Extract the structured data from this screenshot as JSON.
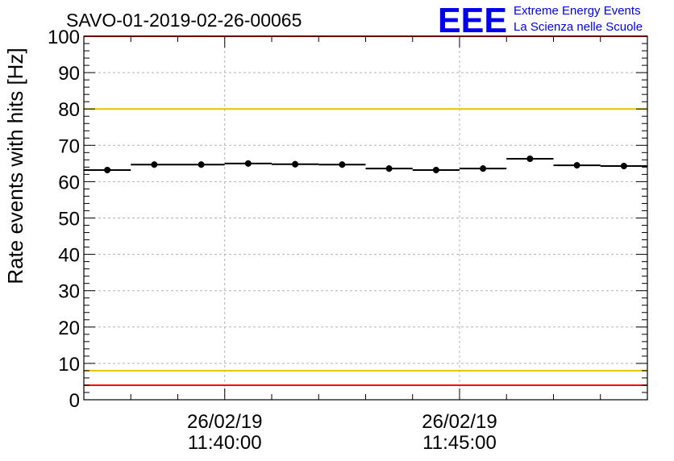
{
  "chart_data": {
    "type": "scatter",
    "title": "SAVO-01-2019-02-26-00065",
    "xlabel": "",
    "ylabel": "Rate events with hits [Hz]",
    "ylim": [
      0,
      100
    ],
    "y_ticks": [
      "0",
      "10",
      "20",
      "30",
      "40",
      "50",
      "60",
      "70",
      "80",
      "90",
      "100"
    ],
    "x_ticks": [
      {
        "date": "26/02/19",
        "time": "11:40:00",
        "minute": 5
      },
      {
        "date": "26/02/19",
        "time": "11:45:00",
        "minute": 10
      }
    ],
    "x_range_minutes": [
      2,
      14
    ],
    "bin_width_minutes": 1,
    "points": [
      {
        "x": 2.5,
        "y": 63.2
      },
      {
        "x": 3.5,
        "y": 64.7
      },
      {
        "x": 4.5,
        "y": 64.7
      },
      {
        "x": 5.5,
        "y": 65.0
      },
      {
        "x": 6.5,
        "y": 64.8
      },
      {
        "x": 7.5,
        "y": 64.7
      },
      {
        "x": 8.5,
        "y": 63.6
      },
      {
        "x": 9.5,
        "y": 63.2
      },
      {
        "x": 10.5,
        "y": 63.6
      },
      {
        "x": 11.5,
        "y": 66.3
      },
      {
        "x": 12.5,
        "y": 64.5
      },
      {
        "x": 13.5,
        "y": 64.3
      }
    ],
    "reference_lines": [
      {
        "y": 100,
        "color": "#ff0000"
      },
      {
        "y": 80,
        "color": "#e6c300"
      },
      {
        "y": 8,
        "color": "#e6c300"
      },
      {
        "y": 4,
        "color": "#ff0000"
      }
    ],
    "grid": true
  },
  "logo": {
    "mark": "EEE",
    "line1": "Extreme Energy Events",
    "line2": "La Scienza nelle Scuole",
    "color": "#0000ee"
  }
}
